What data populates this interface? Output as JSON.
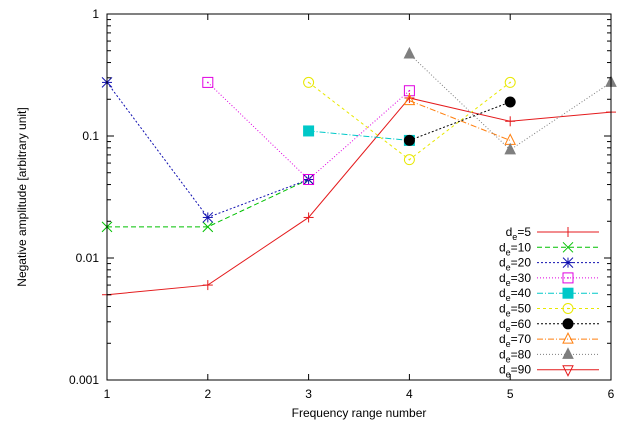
{
  "chart_data": {
    "type": "line",
    "xlabel": "Frequency range number",
    "ylabel": "Negative amplitude [arbitrary unit]",
    "xlim": [
      1,
      6
    ],
    "ylim": [
      0.001,
      1
    ],
    "yscale": "log",
    "grid": false,
    "legend_position": "bottom-right",
    "x_ticks": [
      "1",
      "2",
      "3",
      "4",
      "5",
      "6"
    ],
    "y_ticks": [
      {
        "value": 0.001,
        "label": "0.001"
      },
      {
        "value": 0.01,
        "label": "0.01"
      },
      {
        "value": 0.1,
        "label": "0.1"
      },
      {
        "value": 1,
        "label": "1"
      }
    ],
    "series": [
      {
        "name": "de=5",
        "base": "d",
        "sub": "e",
        "suffix": "=5",
        "color": "#e41a1c",
        "dash": "",
        "marker": "plus",
        "points": [
          [
            1,
            0.005
          ],
          [
            2,
            0.006
          ],
          [
            3,
            0.0215
          ],
          [
            4,
            0.205
          ],
          [
            5,
            0.132
          ],
          [
            6,
            0.157
          ]
        ]
      },
      {
        "name": "de=10",
        "base": "d",
        "sub": "e",
        "suffix": "=10",
        "color": "#00c000",
        "dash": "5,3",
        "marker": "x",
        "points": [
          [
            1,
            0.018
          ],
          [
            2,
            0.018
          ],
          [
            3,
            0.044
          ]
        ]
      },
      {
        "name": "de=20",
        "base": "d",
        "sub": "e",
        "suffix": "=20",
        "color": "#1010b0",
        "dash": "2,2",
        "marker": "star",
        "points": [
          [
            1,
            0.275
          ],
          [
            2,
            0.0215
          ],
          [
            3,
            0.044
          ]
        ]
      },
      {
        "name": "de=30",
        "base": "d",
        "sub": "e",
        "suffix": "=30",
        "color": "#e000e0",
        "dash": "1,2",
        "marker": "square-dot",
        "points": [
          [
            2,
            0.275
          ],
          [
            3,
            0.044
          ],
          [
            4,
            0.235
          ]
        ]
      },
      {
        "name": "de=40",
        "base": "d",
        "sub": "e",
        "suffix": "=40",
        "color": "#00c8c8",
        "dash": "6,2,1,2",
        "marker": "square-filled",
        "points": [
          [
            3,
            0.11
          ],
          [
            4,
            0.092
          ]
        ]
      },
      {
        "name": "de=50",
        "base": "d",
        "sub": "e",
        "suffix": "=50",
        "color": "#e8e800",
        "dash": "3,3",
        "marker": "circle-dot",
        "points": [
          [
            3,
            0.275
          ],
          [
            4,
            0.064
          ],
          [
            5,
            0.275
          ]
        ]
      },
      {
        "name": "de=60",
        "base": "d",
        "sub": "e",
        "suffix": "=60",
        "color": "#000000",
        "dash": "2,2",
        "marker": "circle-filled",
        "points": [
          [
            4,
            0.092
          ],
          [
            5,
            0.19
          ]
        ]
      },
      {
        "name": "de=70",
        "base": "d",
        "sub": "e",
        "suffix": "=70",
        "color": "#ff7f0e",
        "dash": "6,2,1,2",
        "marker": "triangle",
        "points": [
          [
            4,
            0.195
          ],
          [
            5,
            0.092
          ]
        ]
      },
      {
        "name": "de=80",
        "base": "d",
        "sub": "e",
        "suffix": "=80",
        "color": "#7f7f7f",
        "dash": "1,2",
        "marker": "triangle-filled",
        "points": [
          [
            4,
            0.47
          ],
          [
            5,
            0.077
          ],
          [
            6,
            0.275
          ]
        ]
      },
      {
        "name": "de=90",
        "base": "d",
        "sub": "e",
        "suffix": "=90",
        "color": "#e41a1c",
        "dash": "",
        "marker": "triangle-down",
        "points": []
      }
    ]
  }
}
